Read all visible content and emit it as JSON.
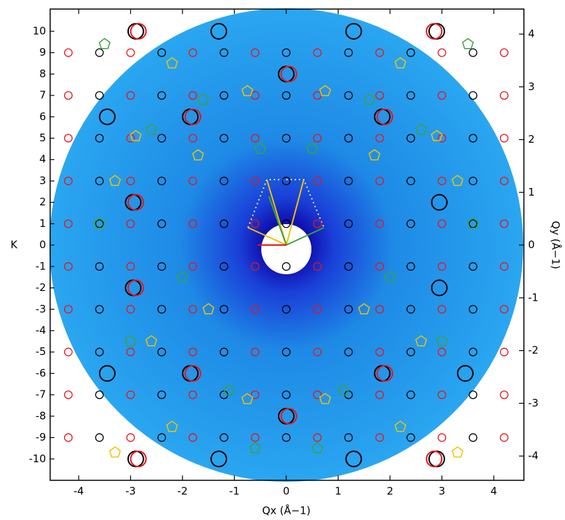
{
  "chart_data": {
    "type": "scatter",
    "xlabel": "Qx (Å−1)",
    "ylabel": "K",
    "y2label": "Qy (Å−1)",
    "xlim": [
      -4.55,
      4.58
    ],
    "xticks": [
      -4,
      -3,
      -2,
      -1,
      0,
      1,
      2,
      3,
      4
    ],
    "ylim": [
      -11.0,
      11.04
    ],
    "yticks": [
      -10,
      -9,
      -8,
      -7,
      -6,
      -5,
      -4,
      -3,
      -2,
      -1,
      0,
      1,
      2,
      3,
      4,
      5,
      6,
      7,
      8,
      9,
      10
    ],
    "y2lim": [
      -4.46,
      4.475
    ],
    "y2ticks": [
      -4,
      -3,
      -2,
      -1,
      0,
      1,
      2,
      3,
      4
    ],
    "series": [
      {
        "color": "#000000",
        "marker": "large-circle",
        "x": [
          -2.9,
          -1.3,
          1.3,
          2.9,
          0,
          -3.45,
          -1.85,
          1.85,
          -2.95,
          2.95,
          -2.95,
          2.95,
          -3.45,
          -1.85,
          1.85,
          3.45,
          0,
          -2.9,
          -1.3,
          1.3,
          2.9
        ],
        "values": [
          10,
          10,
          10,
          10,
          8,
          6,
          6,
          6,
          2,
          2,
          -2,
          -2,
          -6,
          -6,
          -6,
          -6,
          -8,
          -10,
          -10,
          -10,
          -10
        ]
      },
      {
        "color": "#e8141a",
        "marker": "large-circle",
        "x": [
          -2.85,
          2.85,
          0.05,
          -1.8,
          1.9,
          -2.9,
          -2.9,
          -1.8,
          1.9,
          0.05,
          -2.85,
          2.85
        ],
        "values": [
          10,
          10,
          8,
          6,
          6,
          2,
          -2,
          -6,
          -6,
          -8,
          -10,
          -10
        ]
      },
      {
        "color": "#e8141a",
        "marker": "circle",
        "x": [
          -4.2,
          -3,
          -1.8,
          -0.6,
          0.6,
          1.8,
          3,
          4.2,
          -4.2,
          -3,
          -1.8,
          -0.6,
          0.6,
          1.8,
          3,
          4.2,
          -4.2,
          -3,
          -1.8,
          -0.6,
          0.6,
          1.8,
          3,
          4.2,
          -4.2,
          -3,
          -1.8,
          -0.6,
          0.6,
          1.8,
          3,
          4.2,
          -4.2,
          -3,
          -1.8,
          -0.6,
          0.6,
          1.8,
          3,
          4.2,
          -4.2,
          -3,
          -1.8,
          -0.6,
          0.6,
          1.8,
          3,
          4.2,
          -4.2,
          -3,
          -1.8,
          -0.6,
          0.6,
          1.8,
          3,
          4.2,
          -4.2,
          -3,
          -1.8,
          -0.6,
          0.6,
          1.8,
          3,
          4.2,
          -4.2,
          -3,
          -1.8,
          -0.6,
          0.6,
          1.8,
          3,
          4.2,
          -4.2,
          -3,
          -1.8,
          -0.6,
          0.6,
          1.8,
          3,
          4.2
        ],
        "values": [
          9,
          9,
          9,
          9,
          9,
          9,
          9,
          9,
          7,
          7,
          7,
          7,
          7,
          7,
          7,
          7,
          5,
          5,
          5,
          5,
          5,
          5,
          5,
          5,
          3,
          3,
          3,
          3,
          3,
          3,
          3,
          3,
          1,
          1,
          1,
          1,
          1,
          1,
          1,
          1,
          -1,
          -1,
          -1,
          -1,
          -1,
          -1,
          -1,
          -1,
          -3,
          -3,
          -3,
          -3,
          -3,
          -3,
          -3,
          -3,
          -5,
          -5,
          -5,
          -5,
          -5,
          -5,
          -5,
          -5,
          -7,
          -7,
          -7,
          -7,
          -7,
          -7,
          -7,
          -7,
          -9,
          -9,
          -9,
          -9,
          -9,
          -9,
          -9,
          -9
        ]
      },
      {
        "color": "#000000",
        "marker": "circle",
        "x": [
          -3.6,
          -2.4,
          -1.2,
          0,
          1.2,
          2.4,
          3.6,
          -3.6,
          -2.4,
          -1.2,
          0,
          1.2,
          2.4,
          3.6,
          -3.6,
          -2.4,
          -1.2,
          0,
          1.2,
          2.4,
          3.6,
          -3.6,
          -2.4,
          -1.2,
          0,
          1.2,
          2.4,
          3.6,
          -3.6,
          -2.4,
          -1.2,
          0,
          1.2,
          2.4,
          3.6,
          -3.6,
          -2.4,
          -1.2,
          0,
          1.2,
          2.4,
          3.6,
          -3.6,
          -2.4,
          -1.2,
          0,
          1.2,
          2.4,
          3.6,
          -3.6,
          -2.4,
          -1.2,
          0,
          1.2,
          2.4,
          3.6,
          -3.6,
          -2.4,
          -1.2,
          0,
          1.2,
          2.4,
          3.6,
          -3.6,
          -2.4,
          -1.2,
          0,
          1.2,
          2.4,
          3.6
        ],
        "values": [
          9,
          9,
          9,
          9,
          9,
          9,
          9,
          7,
          7,
          7,
          7,
          7,
          7,
          7,
          5,
          5,
          5,
          5,
          5,
          5,
          5,
          3,
          3,
          3,
          3,
          3,
          3,
          3,
          1,
          1,
          1,
          1,
          1,
          1,
          1,
          -1,
          -1,
          -1,
          -1,
          -1,
          -1,
          -1,
          -3,
          -3,
          -3,
          -3,
          -3,
          -3,
          -3,
          -5,
          -5,
          -5,
          -5,
          -5,
          -5,
          -5,
          -7,
          -7,
          -7,
          -7,
          -7,
          -7,
          -7,
          -9,
          -9,
          -9,
          -9,
          -9,
          -9,
          -9
        ]
      },
      {
        "color": "#f2c200",
        "marker": "pentagon",
        "x": [
          -2.2,
          2.2,
          -0.75,
          0.75,
          -2.9,
          2.9,
          -1.7,
          1.7,
          -3.3,
          3.3,
          -1.5,
          1.5,
          -2.6,
          2.6,
          -0.75,
          0.75,
          -2.2,
          2.2,
          -3.3,
          3.3
        ],
        "values": [
          8.5,
          8.5,
          7.2,
          7.2,
          5.1,
          5.1,
          4.2,
          4.2,
          3.0,
          3.0,
          -3.0,
          -3.0,
          -4.5,
          -4.5,
          -7.2,
          -7.2,
          -8.5,
          -8.5,
          -9.7,
          -9.7
        ]
      },
      {
        "color": "#3aa536",
        "marker": "pentagon",
        "x": [
          -3.5,
          3.5,
          -1.6,
          1.6,
          -2.6,
          2.6,
          -0.5,
          0.5,
          -3.6,
          3.6,
          -2.0,
          2.0,
          -3.0,
          3.0,
          -1.1,
          1.1,
          -0.6,
          0.6
        ],
        "values": [
          9.4,
          9.4,
          6.8,
          6.8,
          5.4,
          5.4,
          4.5,
          4.5,
          1.0,
          1.0,
          -1.5,
          -1.5,
          -4.5,
          -4.5,
          -6.8,
          -6.8,
          -9.5,
          -9.5
        ]
      }
    ]
  }
}
